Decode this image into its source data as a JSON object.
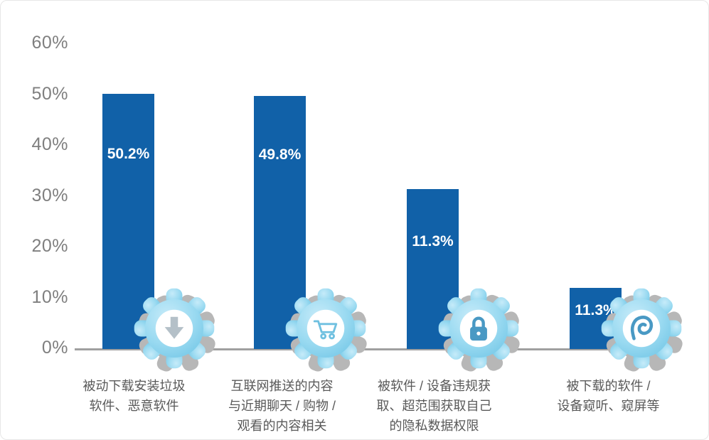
{
  "chart_data": {
    "type": "bar",
    "title": "",
    "xlabel": "",
    "ylabel": "",
    "grid": false,
    "legend": null,
    "ylim": [
      0,
      60
    ],
    "y_ticks": [
      "0%",
      "10%",
      "20%",
      "30%",
      "40%",
      "50%",
      "60%"
    ],
    "categories": [
      [
        "被动下载安装垃圾",
        "软件、恶意软件"
      ],
      [
        "互联网推送的内容",
        "与近期聊天 / 购物 /",
        "观看的内容相关"
      ],
      [
        "被软件 / 设备违规获",
        "取、超范围获取自己",
        "的隐私数据权限"
      ],
      [
        "被下载的软件 /",
        "设备窥听、窥屏等"
      ]
    ],
    "values": [
      50.2,
      49.8,
      11.3,
      11.3
    ],
    "data_labels": [
      "50.2%",
      "49.8%",
      "11.3%",
      "11.3%"
    ],
    "bar_drawn_heights_percent": [
      50.2,
      49.8,
      31.5,
      12.0
    ],
    "icons": [
      "download-arrow",
      "shopping-cart",
      "lock",
      "ear"
    ],
    "colors": {
      "bar": "#1161a8",
      "data_label": "#ffffff",
      "axis_line": "#a0a0a0",
      "tick_label": "#7f7f7f",
      "category_label": "#595959",
      "gear_body": "#8ed2ec",
      "gear_shadow": "#b7b7b7",
      "glyph_blue": "#4999c4",
      "glyph_cart": "#6fc0e0",
      "glyph_arrow": "#b4c0c8"
    }
  }
}
